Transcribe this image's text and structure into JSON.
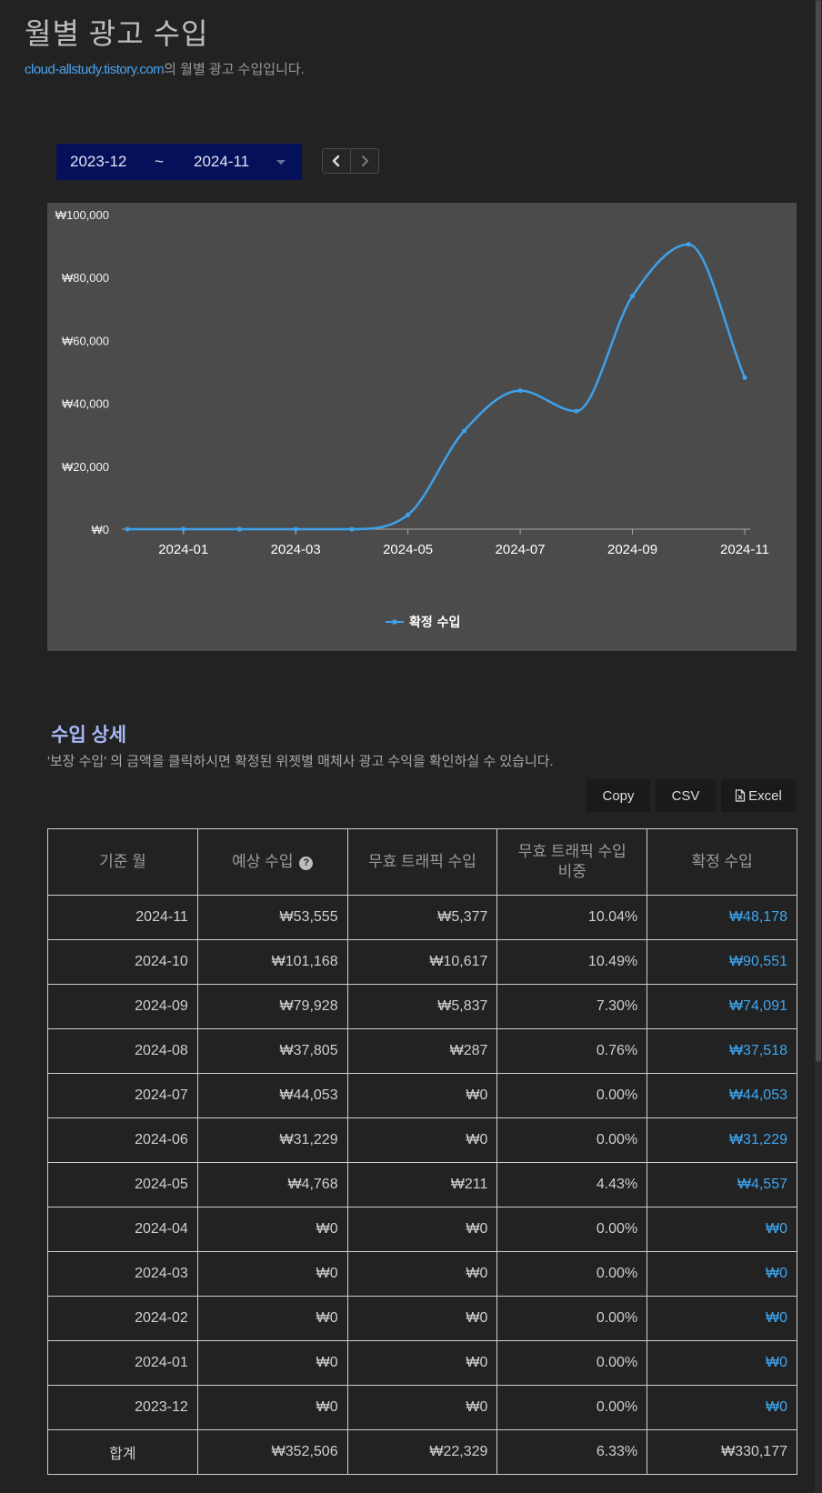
{
  "page": {
    "title": "월별 광고 수입",
    "blog_link": "cloud-allstudy.tistory.com",
    "subtitle_suffix": "의 월별 광고 수입입니다."
  },
  "range": {
    "start": "2023-12",
    "separator": "~",
    "end": "2024-11",
    "prev_icon": "chevron-left-icon",
    "next_icon": "chevron-right-icon"
  },
  "chart_data": {
    "type": "line",
    "x": [
      "2023-12",
      "2024-01",
      "2024-02",
      "2024-03",
      "2024-04",
      "2024-05",
      "2024-06",
      "2024-07",
      "2024-08",
      "2024-09",
      "2024-10",
      "2024-11"
    ],
    "x_tick_labels": [
      "2024-01",
      "2024-03",
      "2024-05",
      "2024-07",
      "2024-09",
      "2024-11"
    ],
    "y_tick_labels": [
      "₩0",
      "₩20,000",
      "₩40,000",
      "₩60,000",
      "₩80,000",
      "₩100,000"
    ],
    "y_ticks": [
      0,
      20000,
      40000,
      60000,
      80000,
      100000
    ],
    "ylim": [
      0,
      100000
    ],
    "series": [
      {
        "name": "확정 수입",
        "color": "#3ea1ea",
        "values": [
          0,
          0,
          0,
          0,
          0,
          4557,
          31229,
          44053,
          37518,
          74091,
          90551,
          48178
        ]
      }
    ],
    "legend_position": "bottom-center",
    "grid": false
  },
  "detail": {
    "title": "수입 상세",
    "description": "'보장 수입' 의 금액을 클릭하시면 확정된 위젯별 매체사 광고 수익을 확인하실 수 있습니다.",
    "buttons": {
      "copy": "Copy",
      "csv": "CSV",
      "excel": "Excel"
    },
    "columns": [
      "기준 월",
      "예상 수입",
      "무효 트래픽 수입",
      "무효 트래픽 수입\n비중",
      "확정 수입"
    ],
    "help_icon": "question-circle-icon",
    "rows": [
      {
        "month": "2024-11",
        "expected": "₩53,555",
        "invalid": "₩5,377",
        "ratio": "10.04%",
        "confirmed": "₩48,178"
      },
      {
        "month": "2024-10",
        "expected": "₩101,168",
        "invalid": "₩10,617",
        "ratio": "10.49%",
        "confirmed": "₩90,551"
      },
      {
        "month": "2024-09",
        "expected": "₩79,928",
        "invalid": "₩5,837",
        "ratio": "7.30%",
        "confirmed": "₩74,091"
      },
      {
        "month": "2024-08",
        "expected": "₩37,805",
        "invalid": "₩287",
        "ratio": "0.76%",
        "confirmed": "₩37,518"
      },
      {
        "month": "2024-07",
        "expected": "₩44,053",
        "invalid": "₩0",
        "ratio": "0.00%",
        "confirmed": "₩44,053"
      },
      {
        "month": "2024-06",
        "expected": "₩31,229",
        "invalid": "₩0",
        "ratio": "0.00%",
        "confirmed": "₩31,229"
      },
      {
        "month": "2024-05",
        "expected": "₩4,768",
        "invalid": "₩211",
        "ratio": "4.43%",
        "confirmed": "₩4,557"
      },
      {
        "month": "2024-04",
        "expected": "₩0",
        "invalid": "₩0",
        "ratio": "0.00%",
        "confirmed": "₩0"
      },
      {
        "month": "2024-03",
        "expected": "₩0",
        "invalid": "₩0",
        "ratio": "0.00%",
        "confirmed": "₩0"
      },
      {
        "month": "2024-02",
        "expected": "₩0",
        "invalid": "₩0",
        "ratio": "0.00%",
        "confirmed": "₩0"
      },
      {
        "month": "2024-01",
        "expected": "₩0",
        "invalid": "₩0",
        "ratio": "0.00%",
        "confirmed": "₩0"
      },
      {
        "month": "2023-12",
        "expected": "₩0",
        "invalid": "₩0",
        "ratio": "0.00%",
        "confirmed": "₩0"
      }
    ],
    "total": {
      "label": "합계",
      "expected": "₩352,506",
      "invalid": "₩22,329",
      "ratio": "6.33%",
      "confirmed": "₩330,177"
    }
  },
  "colors": {
    "background": "#222222",
    "panel": "#4b4b4b",
    "accent": "#3ea7f2",
    "picker": "#05105a",
    "section_title": "#a6b8f4"
  }
}
